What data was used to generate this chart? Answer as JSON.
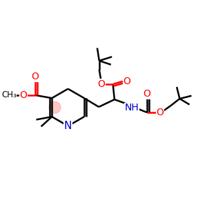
{
  "bg_color": "#ffffff",
  "bond_color": "#000000",
  "red_color": "#ff0000",
  "blue_color": "#0000cc",
  "pink_color": "#ff9999",
  "bond_lw": 1.8,
  "font_size": 10,
  "figsize": [
    3.0,
    3.0
  ],
  "dpi": 100,
  "xlim": [
    0,
    10
  ],
  "ylim": [
    0,
    10
  ]
}
